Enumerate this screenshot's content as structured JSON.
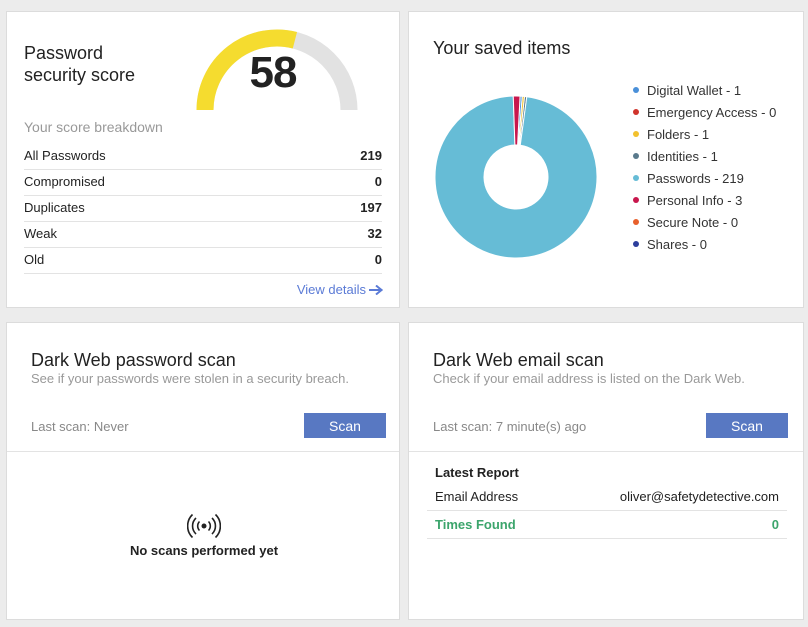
{
  "score_card": {
    "title_line1": "Password",
    "title_line2": "security score",
    "score": "58",
    "score_fraction": 0.58,
    "gauge_fill_color": "#f5dc2f",
    "gauge_track_color": "#e2e2e2",
    "breakdown_title": "Your score breakdown",
    "rows": [
      {
        "label": "All Passwords",
        "value": "219"
      },
      {
        "label": "Compromised",
        "value": "0"
      },
      {
        "label": "Duplicates",
        "value": "197"
      },
      {
        "label": "Weak",
        "value": "32"
      },
      {
        "label": "Old",
        "value": "0"
      }
    ],
    "view_details": "View details",
    "view_details_icon": "arrow-right-icon"
  },
  "items_card": {
    "title": "Your saved items",
    "legend": [
      {
        "label": "Digital Wallet - 1",
        "color": "#4a90d9"
      },
      {
        "label": "Emergency Access - 0",
        "color": "#d0342c"
      },
      {
        "label": "Folders - 1",
        "color": "#f2c12e"
      },
      {
        "label": "Identities - 1",
        "color": "#5a7a8c"
      },
      {
        "label": "Passwords - 219",
        "color": "#66bcd6"
      },
      {
        "label": "Personal Info - 3",
        "color": "#c8174d"
      },
      {
        "label": "Secure Note - 0",
        "color": "#e8602c"
      },
      {
        "label": "Shares - 0",
        "color": "#2c3e9c"
      }
    ]
  },
  "chart_data": {
    "type": "pie",
    "categories": [
      "Digital Wallet",
      "Emergency Access",
      "Folders",
      "Identities",
      "Passwords",
      "Personal Info",
      "Secure Note",
      "Shares"
    ],
    "values": [
      1,
      0,
      1,
      1,
      219,
      3,
      0,
      0
    ],
    "colors": [
      "#4a90d9",
      "#d0342c",
      "#f2c12e",
      "#5a7a8c",
      "#66bcd6",
      "#c8174d",
      "#e8602c",
      "#2c3e9c"
    ],
    "title": "Your saved items",
    "legend": "right"
  },
  "dw_password": {
    "title": "Dark Web password scan",
    "subtitle": "See if your passwords were stolen in a security breach.",
    "last_scan": "Last scan: Never",
    "scan_button": "Scan",
    "empty_icon": "broadcast-icon",
    "empty_text": "No scans performed yet"
  },
  "dw_email": {
    "title": "Dark Web email scan",
    "subtitle": "Check if your email address is listed on the Dark Web.",
    "last_scan": "Last scan: 7 minute(s) ago",
    "scan_button": "Scan",
    "report_title": "Latest Report",
    "email_label": "Email Address",
    "email_value": "oliver@safetydetective.com",
    "times_label": "Times Found",
    "times_value": "0"
  }
}
